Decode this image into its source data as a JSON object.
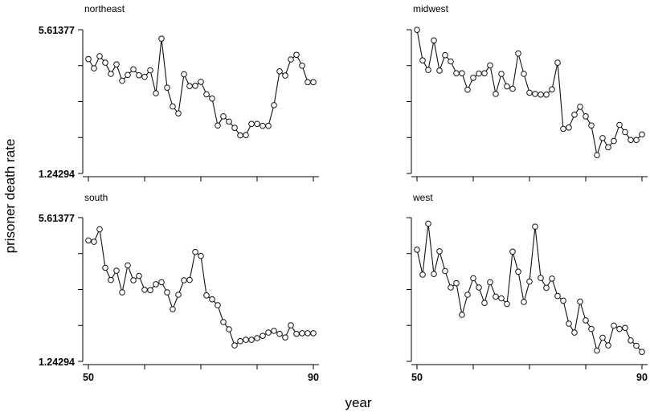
{
  "chart_data": {
    "type": "line",
    "layout": "2x2 small multiples, shared axes",
    "ylabel": "prisoner death rate",
    "xlabel": "year",
    "y_ticks": [
      "5.61377",
      "1.24294"
    ],
    "y_range": [
      1.24294,
      5.61377
    ],
    "x_ticks": [
      "50",
      "90"
    ],
    "x_range": [
      50,
      90
    ],
    "panels": [
      {
        "name": "northeast",
        "x": [
          50,
          51,
          52,
          53,
          54,
          55,
          56,
          57,
          58,
          59,
          60,
          61,
          62,
          63,
          64,
          65,
          66,
          67,
          68,
          69,
          70,
          71,
          72,
          73,
          74,
          75,
          76,
          77,
          78,
          79,
          80,
          81,
          82,
          83,
          84,
          85,
          86,
          87,
          88,
          89,
          90
        ],
        "values": [
          4.72,
          4.44,
          4.81,
          4.61,
          4.27,
          4.56,
          4.06,
          4.24,
          4.41,
          4.23,
          4.18,
          4.38,
          3.68,
          5.34,
          3.85,
          3.28,
          3.07,
          4.26,
          3.9,
          3.91,
          4.03,
          3.65,
          3.52,
          2.7,
          2.98,
          2.82,
          2.63,
          2.4,
          2.41,
          2.75,
          2.75,
          2.69,
          2.69,
          3.32,
          4.35,
          4.22,
          4.71,
          4.85,
          4.52,
          4.02,
          4.02
        ]
      },
      {
        "name": "midwest",
        "x": [
          50,
          51,
          52,
          53,
          54,
          55,
          56,
          57,
          58,
          59,
          60,
          61,
          62,
          63,
          64,
          65,
          66,
          67,
          68,
          69,
          70,
          71,
          72,
          73,
          74,
          75,
          76,
          77,
          78,
          79,
          80,
          81,
          82,
          83,
          84,
          85,
          86,
          87,
          88,
          89,
          90
        ],
        "values": [
          5.61,
          4.68,
          4.39,
          5.29,
          4.37,
          4.84,
          4.65,
          4.29,
          4.29,
          3.79,
          4.15,
          4.28,
          4.29,
          4.53,
          3.66,
          4.27,
          3.89,
          3.82,
          4.89,
          4.27,
          3.7,
          3.66,
          3.64,
          3.64,
          3.8,
          4.61,
          2.6,
          2.64,
          3.03,
          3.27,
          2.98,
          2.7,
          1.8,
          2.32,
          2.04,
          2.23,
          2.72,
          2.5,
          2.26,
          2.26,
          2.43
        ]
      },
      {
        "name": "south",
        "x": [
          50,
          51,
          52,
          53,
          54,
          55,
          56,
          57,
          58,
          59,
          60,
          61,
          62,
          63,
          64,
          65,
          66,
          67,
          68,
          69,
          70,
          71,
          72,
          73,
          74,
          75,
          76,
          77,
          78,
          79,
          80,
          81,
          82,
          83,
          84,
          85,
          86,
          87,
          88,
          89,
          90
        ],
        "values": [
          4.92,
          4.88,
          5.26,
          4.09,
          3.72,
          4.0,
          3.34,
          4.16,
          3.71,
          3.84,
          3.42,
          3.41,
          3.59,
          3.65,
          3.34,
          2.83,
          3.27,
          3.71,
          3.72,
          4.57,
          4.45,
          3.25,
          3.13,
          2.95,
          2.44,
          2.22,
          1.73,
          1.86,
          1.9,
          1.9,
          1.95,
          2.02,
          2.12,
          2.17,
          2.08,
          1.97,
          2.34,
          2.08,
          2.1,
          2.1,
          2.1
        ]
      },
      {
        "name": "west",
        "x": [
          50,
          51,
          52,
          53,
          54,
          55,
          56,
          57,
          58,
          59,
          60,
          61,
          62,
          63,
          64,
          65,
          66,
          67,
          68,
          69,
          70,
          71,
          72,
          73,
          74,
          75,
          76,
          77,
          78,
          79,
          80,
          81,
          82,
          83,
          84,
          85,
          86,
          87,
          88,
          89,
          90
        ],
        "values": [
          4.64,
          3.88,
          5.43,
          3.9,
          4.59,
          3.99,
          3.49,
          3.62,
          2.66,
          3.27,
          3.77,
          3.49,
          3.02,
          3.65,
          3.21,
          3.16,
          2.99,
          4.58,
          3.97,
          3.05,
          3.67,
          5.34,
          3.78,
          3.48,
          3.76,
          3.23,
          3.09,
          2.39,
          2.12,
          3.06,
          2.49,
          2.23,
          1.57,
          1.96,
          1.73,
          2.33,
          2.23,
          2.26,
          1.88,
          1.72,
          1.53
        ]
      }
    ]
  }
}
